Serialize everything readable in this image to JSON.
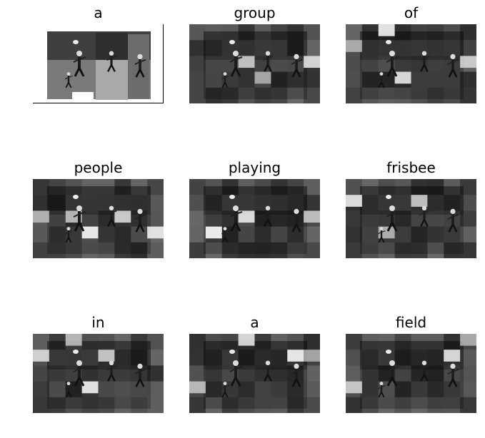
{
  "figure": {
    "panels": [
      {
        "word": "a"
      },
      {
        "word": "group"
      },
      {
        "word": "of"
      },
      {
        "word": "people"
      },
      {
        "word": "playing"
      },
      {
        "word": "frisbee"
      },
      {
        "word": "in"
      },
      {
        "word": "a"
      },
      {
        "word": "field"
      }
    ]
  }
}
